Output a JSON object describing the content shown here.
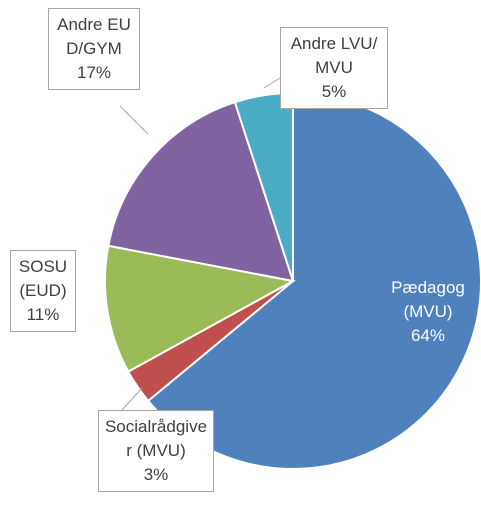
{
  "chart_data": {
    "type": "pie",
    "categories": [
      "Pædagog (MVU)",
      "Socialrådgiver (MVU)",
      "SOSU (EUD)",
      "Andre EUD/GYM",
      "Andre LVU/MVU"
    ],
    "values": [
      64,
      3,
      11,
      17,
      5
    ],
    "value_labels": [
      "64%",
      "3%",
      "11%",
      "17%",
      "5%"
    ],
    "colors": [
      "#4f81bd",
      "#c0504d",
      "#9bbb59",
      "#8064a2",
      "#4bacc6"
    ]
  }
}
